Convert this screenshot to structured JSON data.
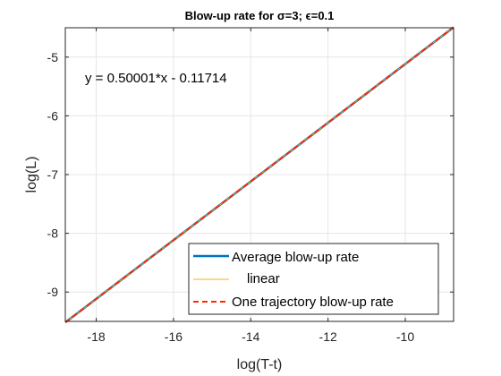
{
  "chart_data": {
    "type": "line",
    "title": "Blow-up rate for σ=3; ϵ=0.1",
    "xlabel": "log(T-t)",
    "ylabel": "log(L)",
    "xlim": [
      -18.8,
      -8.75
    ],
    "ylim": [
      -9.5,
      -4.5
    ],
    "xticks": [
      -18,
      -16,
      -14,
      -12,
      -10
    ],
    "yticks": [
      -9,
      -8,
      -7,
      -6,
      -5
    ],
    "grid": true,
    "legend_position": "bottom-right",
    "annotation": "y = 0.50001*x - 0.11714",
    "series": [
      {
        "name": "Average blow-up rate",
        "color": "#0072BD",
        "style": "solid",
        "x": [
          -18.8,
          -8.75
        ],
        "y": [
          -9.517,
          -4.492
        ]
      },
      {
        "name": "linear",
        "color": "#EDB120",
        "style": "solid",
        "x": [
          -18.8,
          -8.75
        ],
        "y": [
          -9.517,
          -4.492
        ]
      },
      {
        "name": "One trajectory blow-up rate",
        "color": "#FF2A00",
        "style": "dashed",
        "x": [
          -18.8,
          -8.75
        ],
        "y": [
          -9.517,
          -4.492
        ]
      }
    ]
  }
}
